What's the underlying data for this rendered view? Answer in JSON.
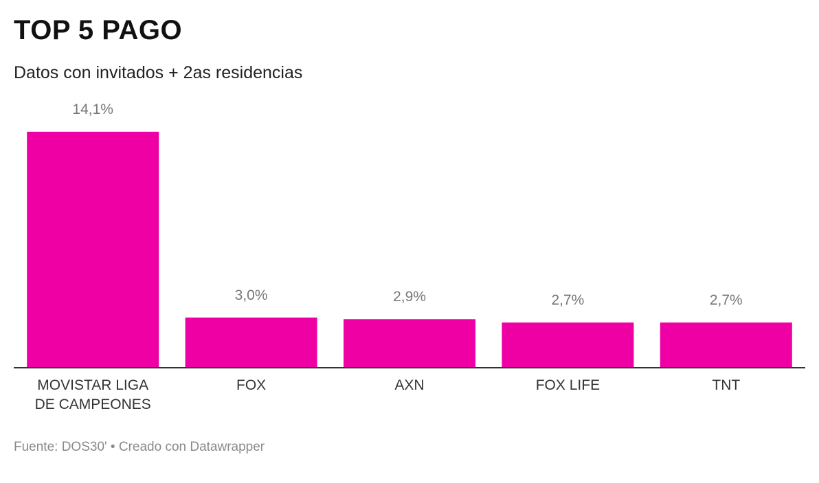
{
  "header": {
    "title": "TOP 5 PAGO",
    "subtitle": "Datos con invitados + 2as residencias"
  },
  "footer": {
    "source_text": "Fuente: DOS30' • Creado con Datawrapper"
  },
  "chart_data": {
    "type": "bar",
    "title": "TOP 5 PAGO",
    "subtitle": "Datos con invitados + 2as residencias",
    "categories": [
      [
        "MOVISTAR LIGA",
        "DE CAMPEONES"
      ],
      [
        "FOX"
      ],
      [
        "AXN"
      ],
      [
        "FOX LIFE"
      ],
      [
        "TNT"
      ]
    ],
    "values": [
      14.1,
      3.0,
      2.9,
      2.7,
      2.7
    ],
    "value_labels": [
      "14,1%",
      "3,0%",
      "2,9%",
      "2,7%",
      "2,7%"
    ],
    "xlabel": "",
    "ylabel": "",
    "ylim": [
      0,
      14.1
    ],
    "grid": false,
    "legend": "none",
    "bar_color": "#ee00a4",
    "baseline_color": "#333333"
  }
}
